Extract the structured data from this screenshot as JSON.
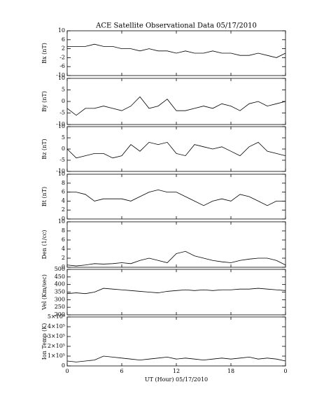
{
  "title": "ACE Satellite Observational Data   05/17/2010",
  "xlabel": "UT (Hour)   05/17/2010",
  "x": [
    0,
    1,
    2,
    3,
    4,
    5,
    6,
    7,
    8,
    9,
    10,
    11,
    12,
    13,
    14,
    15,
    16,
    17,
    18,
    19,
    20,
    21,
    22,
    23,
    24
  ],
  "xlim": [
    0,
    24
  ],
  "xticks": [
    {
      "value": 0,
      "label": "0"
    },
    6,
    12,
    18,
    {
      "value": 24,
      "label": "0"
    }
  ],
  "chart_data": [
    {
      "type": "line",
      "ylabel": "Bx (nT)",
      "ylim": [
        -10,
        10
      ],
      "yticks": [
        -10,
        -6,
        -2,
        2,
        6,
        10
      ],
      "series": [
        {
          "color": "#000000",
          "values": [
            3,
            3,
            3,
            4,
            3,
            3,
            2,
            2,
            1,
            2,
            1,
            1,
            0,
            1,
            0,
            0,
            1,
            0,
            0,
            -1,
            -1,
            0,
            -1,
            -2,
            0
          ]
        }
      ]
    },
    {
      "type": "line",
      "ylabel": "By (nT)",
      "ylim": [
        -10,
        10
      ],
      "yticks": [
        -10,
        -5,
        0,
        5,
        10
      ],
      "series": [
        {
          "color": "#000000",
          "values": [
            -3,
            -6,
            -3,
            -3,
            -2,
            -3,
            -4,
            -2,
            2,
            -3,
            -2,
            1,
            -4,
            -4,
            -3,
            -2,
            -3,
            -1,
            -2,
            -4,
            -1,
            0,
            -2,
            -1,
            0
          ]
        }
      ]
    },
    {
      "type": "line",
      "ylabel": "Bz (nT)",
      "ylim": [
        -10,
        10
      ],
      "yticks": [
        -10,
        -5,
        0,
        5,
        10
      ],
      "series": [
        {
          "color": "#000000",
          "values": [
            0,
            -4,
            -3,
            -2,
            -2,
            -4,
            -3,
            2,
            -1,
            3,
            2,
            3,
            -2,
            -3,
            2,
            1,
            0,
            1,
            -1,
            -3,
            1,
            3,
            -1,
            -2,
            -3
          ]
        }
      ]
    },
    {
      "type": "line",
      "ylabel": "Bt (nT)",
      "ylim": [
        0,
        10
      ],
      "yticks": [
        0,
        2,
        4,
        6,
        8,
        10
      ],
      "series": [
        {
          "color": "#000000",
          "values": [
            6,
            6,
            5.5,
            4,
            4.5,
            4.5,
            4.5,
            4,
            5,
            6,
            6.5,
            6,
            6,
            5,
            4,
            3,
            4,
            4.5,
            4,
            5.5,
            5,
            4,
            3,
            4,
            4
          ]
        }
      ]
    },
    {
      "type": "line",
      "ylabel": "Den (1/cc)",
      "ylim": [
        0,
        10
      ],
      "yticks": [
        0,
        2,
        4,
        6,
        8,
        10
      ],
      "series": [
        {
          "color": "#000000",
          "values": [
            0.5,
            0.3,
            0.5,
            0.8,
            0.7,
            0.8,
            1,
            0.8,
            1.5,
            2,
            1.5,
            1,
            3,
            3.5,
            2.5,
            2,
            1.5,
            1.2,
            1,
            1.5,
            1.8,
            2,
            2,
            1.5,
            0.5
          ]
        }
      ]
    },
    {
      "type": "line",
      "ylabel": "Vel (Km/sec)",
      "ylim": [
        200,
        500
      ],
      "yticks": [
        200,
        250,
        300,
        350,
        400,
        450,
        500
      ],
      "series": [
        {
          "color": "#000000",
          "values": [
            340,
            345,
            340,
            350,
            375,
            370,
            365,
            360,
            355,
            350,
            345,
            355,
            360,
            365,
            360,
            365,
            360,
            365,
            365,
            370,
            370,
            375,
            370,
            365,
            360
          ]
        }
      ]
    },
    {
      "type": "line",
      "ylabel": "Ion Temp (K)",
      "ylim": [
        0,
        500000
      ],
      "yticks": [
        0,
        {
          "value": 100000,
          "label": "1×10⁵"
        },
        {
          "value": 200000,
          "label": "2×10⁵"
        },
        {
          "value": 300000,
          "label": "3×10⁵"
        },
        {
          "value": 400000,
          "label": "4×10⁵"
        },
        {
          "value": 500000,
          "label": "5×10⁵"
        }
      ],
      "series": [
        {
          "color": "#000000",
          "values": [
            50000,
            40000,
            50000,
            60000,
            100000,
            90000,
            80000,
            70000,
            60000,
            70000,
            80000,
            90000,
            70000,
            80000,
            70000,
            60000,
            70000,
            80000,
            70000,
            80000,
            90000,
            70000,
            80000,
            70000,
            50000
          ]
        }
      ]
    }
  ]
}
